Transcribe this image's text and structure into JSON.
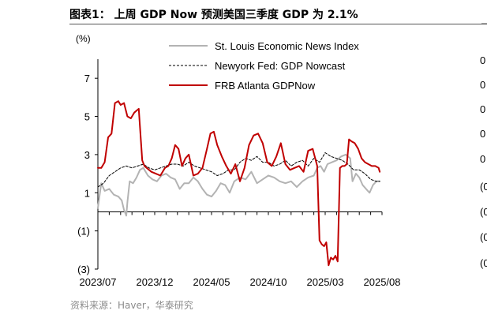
{
  "header": {
    "title": "图表1：  上周 GDP Now 预测美国三季度 GDP 为 2.1%",
    "source": "资料来源：Haver，华泰研究"
  },
  "chart_data": {
    "type": "line",
    "title": "上周 GDP Now 预测美国三季度 GDP 为 2.1%",
    "ylabel": "(%)",
    "ylim": [
      -3,
      8
    ],
    "yticks": [
      {
        "value": 7,
        "label": "7"
      },
      {
        "value": 5,
        "label": "5"
      },
      {
        "value": 3,
        "label": "3"
      },
      {
        "value": 1,
        "label": "1"
      },
      {
        "value": -1,
        "label": "(1)"
      },
      {
        "value": -3,
        "label": "(3)"
      }
    ],
    "xlim": [
      0,
      25
    ],
    "xticks": [
      {
        "value": 0,
        "label": "2023/07"
      },
      {
        "value": 5,
        "label": "2023/12"
      },
      {
        "value": 10,
        "label": "2024/05"
      },
      {
        "value": 15,
        "label": "2024/10"
      },
      {
        "value": 20,
        "label": "2025/03"
      },
      {
        "value": 25,
        "label": "2025/08"
      }
    ],
    "legend_position": "top-right",
    "series": [
      {
        "name": "St. Louis Economic News Index",
        "style": "solid",
        "color": "#b3b3b3",
        "x": [
          0,
          0.3,
          0.6,
          1,
          1.4,
          1.8,
          2.1,
          2.3,
          2.5,
          2.6,
          2.8,
          3.1,
          3.4,
          3.7,
          4,
          4.4,
          4.8,
          5.2,
          5.6,
          6,
          6.4,
          6.8,
          7.2,
          7.6,
          8,
          8.4,
          8.8,
          9.2,
          9.6,
          10,
          10.4,
          10.8,
          11.2,
          11.6,
          12,
          12.5,
          13,
          13.5,
          14,
          14.5,
          15,
          15.5,
          16,
          16.5,
          17,
          17.5,
          18,
          18.5,
          19,
          19.3,
          19.6,
          19.9,
          20.2,
          20.6,
          21,
          21.4,
          21.8,
          22.2,
          22.4,
          22.7,
          23,
          23.3,
          23.6,
          23.9,
          24.2,
          24.5,
          24.8
        ],
        "y": [
          0.2,
          1.5,
          1.1,
          1.2,
          0.9,
          0.8,
          0.6,
          0.1,
          -0.2,
          0.5,
          1.6,
          1.5,
          1.8,
          2.2,
          2.3,
          1.9,
          1.7,
          1.6,
          1.9,
          2,
          1.8,
          1.7,
          1.2,
          1.5,
          1.5,
          1.8,
          1.6,
          1.2,
          0.9,
          0.8,
          1.1,
          1.5,
          1.4,
          1.0,
          1.6,
          1.8,
          1.7,
          2.1,
          1.5,
          1.7,
          1.9,
          1.8,
          1.6,
          1.5,
          1.6,
          1.3,
          1.6,
          1.8,
          1.9,
          2.3,
          2.4,
          2.1,
          2.5,
          2.6,
          2.7,
          2.9,
          3.0,
          2.8,
          1.6,
          2.0,
          1.8,
          1.4,
          1.2,
          1.0,
          1.4,
          1.6,
          1.6
        ]
      },
      {
        "name": "Newyork Fed: GDP Nowcast",
        "style": "dashed",
        "color": "#000000",
        "x": [
          0,
          0.5,
          1,
          1.5,
          2,
          2.5,
          3,
          3.5,
          4,
          4.5,
          5,
          5.5,
          6,
          6.5,
          7,
          7.5,
          8,
          8.5,
          9,
          9.5,
          10,
          10.5,
          11,
          11.5,
          12,
          12.5,
          13,
          13.5,
          14,
          14.5,
          15,
          15.5,
          16,
          16.5,
          17,
          17.5,
          18,
          18.5,
          19,
          19.5,
          20,
          20.5,
          21,
          21.5,
          22,
          22.5,
          23,
          23.5,
          24,
          24.5,
          24.8
        ],
        "y": [
          1.3,
          1.5,
          1.9,
          2.1,
          2.3,
          2.4,
          2.3,
          2.4,
          2.5,
          2.3,
          2.2,
          2.3,
          2.4,
          2.5,
          2.5,
          2.4,
          2.6,
          2.4,
          2.3,
          2.2,
          2.1,
          1.9,
          2.0,
          2.2,
          2.2,
          2.6,
          2.8,
          2.7,
          2.9,
          2.6,
          2.6,
          2.4,
          2.5,
          2.7,
          2.4,
          2.6,
          2.7,
          2.4,
          2.8,
          2.6,
          3.1,
          2.9,
          2.8,
          2.7,
          2.5,
          2.2,
          2.2,
          2.0,
          1.7,
          1.6,
          1.6
        ]
      },
      {
        "name": "FRB Atlanta GDPNow",
        "style": "solid",
        "color": "#c00000",
        "x": [
          0,
          0.3,
          0.6,
          0.9,
          1.2,
          1.5,
          1.8,
          2.0,
          2.3,
          2.6,
          2.9,
          3.2,
          3.6,
          3.9,
          4.1,
          4.3,
          4.7,
          5.1,
          5.5,
          5.9,
          6.2,
          6.5,
          6.8,
          7.1,
          7.4,
          7.7,
          8,
          8.4,
          8.8,
          9.2,
          9.6,
          9.9,
          10.2,
          10.5,
          10.9,
          11.3,
          11.7,
          12.1,
          12.5,
          12.9,
          13.3,
          13.7,
          14.1,
          14.5,
          14.9,
          15.3,
          15.7,
          16.1,
          16.5,
          16.9,
          17.3,
          17.7,
          18.1,
          18.5,
          18.9,
          19.3,
          19.5,
          19.7,
          19.9,
          20.1,
          20.3,
          20.5,
          20.7,
          20.9,
          21.1,
          21.3,
          21.5,
          21.7,
          21.9,
          22.1,
          22.3,
          22.6,
          22.9,
          23.2,
          23.5,
          23.8,
          24.1,
          24.4,
          24.7,
          24.8
        ],
        "y": [
          2.3,
          2.3,
          2.6,
          3.9,
          4.1,
          5.7,
          5.8,
          5.6,
          5.7,
          5.0,
          4.9,
          5.2,
          5.4,
          2.7,
          2.4,
          2.3,
          2.1,
          2.0,
          1.9,
          2.3,
          2.4,
          2.8,
          3.5,
          3.3,
          2.4,
          2.8,
          3.0,
          1.9,
          2.0,
          2.3,
          3.3,
          4.1,
          4.2,
          3.5,
          2.9,
          2.4,
          2.0,
          2.5,
          1.6,
          2.3,
          3.5,
          4.0,
          4.1,
          3.6,
          2.6,
          2.4,
          2.9,
          3.6,
          2.5,
          2.2,
          2.3,
          2.4,
          2.1,
          3.2,
          3.3,
          2.4,
          -1.5,
          -1.7,
          -1.8,
          -1.6,
          -2.8,
          -2.4,
          -2.5,
          -2.3,
          -2.6,
          2.3,
          2.4,
          2.4,
          2.5,
          3.8,
          3.7,
          3.6,
          3.3,
          2.8,
          2.6,
          2.5,
          2.4,
          2.4,
          2.3,
          2.1
        ]
      }
    ]
  },
  "right_panel": {
    "labels": [
      "0",
      "0",
      "0",
      "0",
      "0",
      "(0",
      "(0",
      "(0",
      "(0"
    ]
  }
}
